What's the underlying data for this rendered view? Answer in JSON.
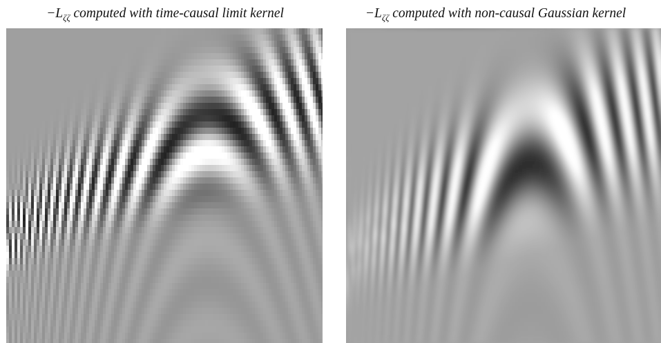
{
  "figures": [
    {
      "caption_sign": "−",
      "caption_symbol": "L",
      "caption_subscript": "ζζ",
      "caption_text": "computed with time-causal limit kernel",
      "kernel": "time-causal-limit"
    },
    {
      "caption_sign": "−",
      "caption_symbol": "L",
      "caption_subscript": "ζζ",
      "caption_text": "computed with non-causal Gaussian kernel",
      "kernel": "non-causal-gaussian"
    }
  ],
  "colors": {
    "background_gray": "#9c9c9c",
    "dark": "#141414",
    "light": "#f4f4f4"
  }
}
